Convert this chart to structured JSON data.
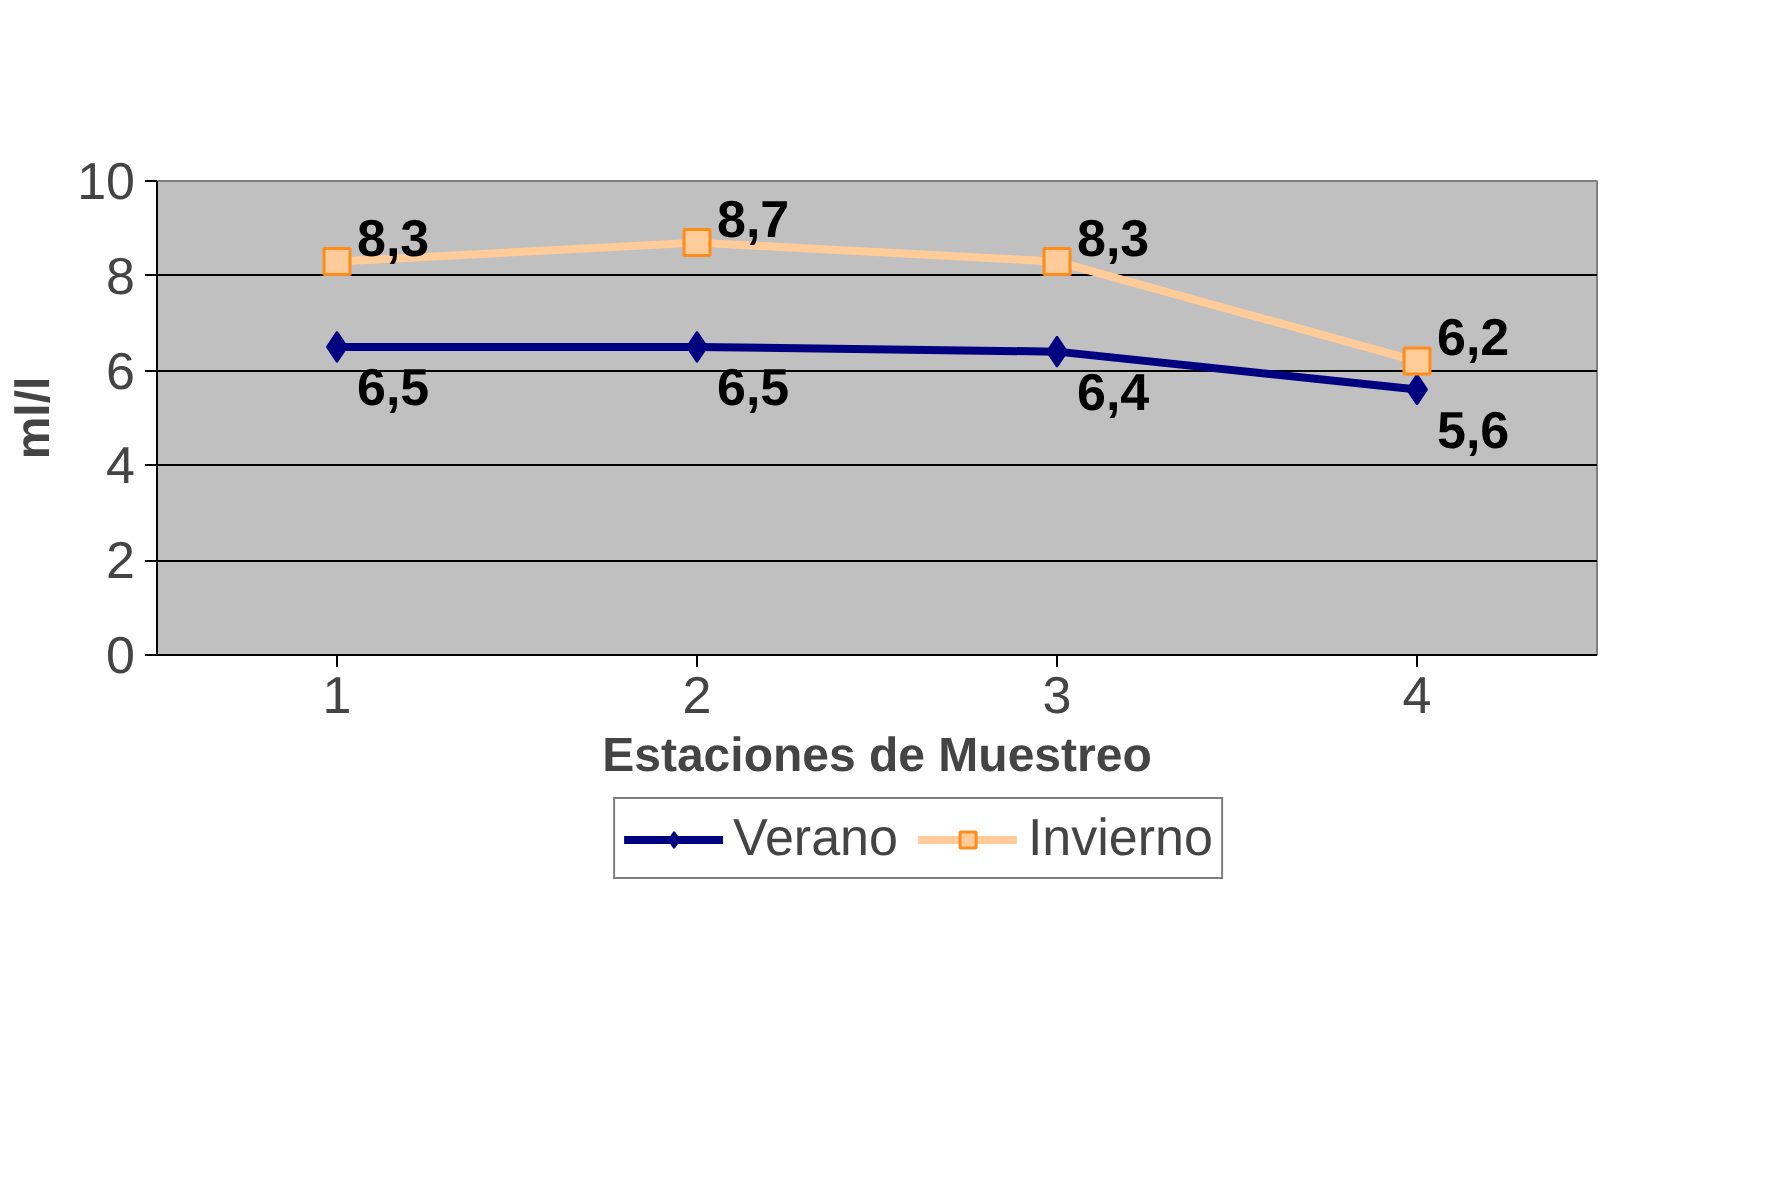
{
  "chart_data": {
    "type": "line",
    "xlabel": "Estaciones de Muestreo",
    "ylabel": "ml/l",
    "categories": [
      "1",
      "2",
      "3",
      "4"
    ],
    "ylim": [
      0,
      10
    ],
    "yticks": [
      0,
      2,
      4,
      6,
      8,
      10
    ],
    "grid": "y",
    "legend": "bottom",
    "series": [
      {
        "name": "Verano",
        "color": "#000080",
        "marker": "diamond",
        "values": [
          6.5,
          6.5,
          6.4,
          5.6
        ],
        "value_labels": [
          "6,5",
          "6,5",
          "6,4",
          "5,6"
        ]
      },
      {
        "name": "Invierno",
        "color": "#ffcc99",
        "marker": "square",
        "values": [
          8.3,
          8.7,
          8.3,
          6.2
        ],
        "value_labels": [
          "8,3",
          "8,7",
          "8,3",
          "6,2"
        ]
      }
    ]
  }
}
